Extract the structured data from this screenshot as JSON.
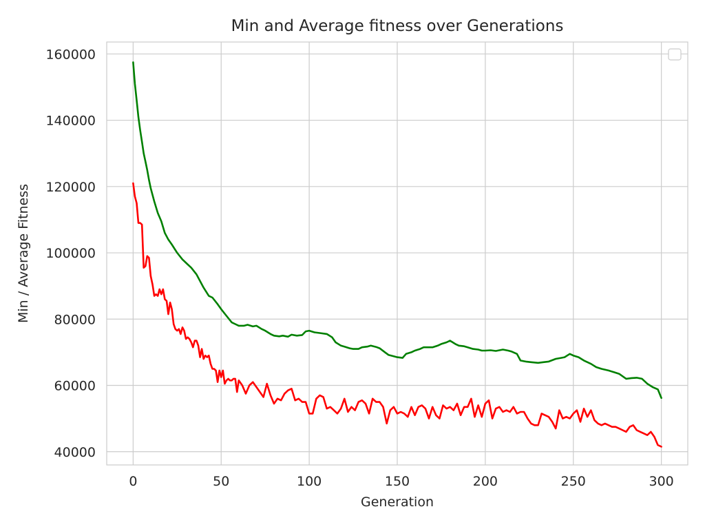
{
  "chart_data": {
    "type": "line",
    "title": "Min and Average fitness over Generations",
    "xlabel": "Generation",
    "ylabel": "Min / Average Fitness",
    "xlim": [
      -15,
      315
    ],
    "ylim": [
      36000,
      163600
    ],
    "xticks": [
      0,
      50,
      100,
      150,
      200,
      250,
      300
    ],
    "yticks": [
      40000,
      60000,
      80000,
      100000,
      120000,
      140000,
      160000
    ],
    "grid": true,
    "legend": "top-right, empty",
    "series": [
      {
        "color": "#008000",
        "x": [
          0,
          1,
          2,
          3,
          4,
          5,
          6,
          7,
          8,
          9,
          10,
          12,
          14,
          16,
          18,
          20,
          22,
          25,
          28,
          30,
          33,
          36,
          40,
          43,
          45,
          48,
          50,
          53,
          56,
          58,
          60,
          63,
          65,
          68,
          70,
          73,
          75,
          78,
          80,
          83,
          85,
          88,
          90,
          93,
          96,
          98,
          100,
          103,
          106,
          110,
          113,
          115,
          118,
          120,
          123,
          125,
          128,
          130,
          133,
          135,
          138,
          140,
          143,
          145,
          148,
          150,
          153,
          155,
          158,
          160,
          163,
          165,
          168,
          170,
          173,
          175,
          178,
          180,
          183,
          185,
          188,
          190,
          193,
          196,
          198,
          200,
          203,
          206,
          210,
          213,
          215,
          218,
          220,
          223,
          226,
          230,
          233,
          236,
          240,
          243,
          245,
          248,
          250,
          253,
          256,
          260,
          263,
          266,
          270,
          273,
          276,
          280,
          283,
          286,
          289,
          292,
          295,
          298,
          300
        ],
        "y": [
          157500,
          151000,
          146000,
          141000,
          137000,
          133500,
          130000,
          127500,
          125000,
          122000,
          119500,
          115500,
          112000,
          109500,
          106000,
          104000,
          102500,
          100000,
          98000,
          97000,
          95500,
          93500,
          89500,
          87000,
          86500,
          84500,
          83000,
          81000,
          79000,
          78500,
          78000,
          78000,
          78300,
          77800,
          78000,
          77000,
          76500,
          75500,
          75000,
          74800,
          75000,
          74700,
          75300,
          75000,
          75200,
          76300,
          76500,
          76000,
          75800,
          75500,
          74500,
          73000,
          72000,
          71700,
          71200,
          71000,
          71000,
          71500,
          71700,
          72000,
          71600,
          71200,
          70000,
          69200,
          68800,
          68500,
          68300,
          69500,
          70000,
          70500,
          71000,
          71500,
          71500,
          71500,
          72000,
          72500,
          73000,
          73500,
          72500,
          72000,
          71800,
          71500,
          71000,
          70800,
          70500,
          70500,
          70600,
          70400,
          70800,
          70500,
          70200,
          69500,
          67500,
          67200,
          67000,
          66800,
          67000,
          67200,
          68000,
          68300,
          68500,
          69500,
          69000,
          68500,
          67500,
          66500,
          65500,
          65000,
          64500,
          64000,
          63500,
          62000,
          62200,
          62300,
          62000,
          60500,
          59500,
          58800,
          56200
        ]
      },
      {
        "color": "#ff0000",
        "x": [
          0,
          1,
          2,
          3,
          4,
          5,
          6,
          7,
          8,
          9,
          10,
          11,
          12,
          13,
          14,
          15,
          16,
          17,
          18,
          19,
          20,
          21,
          22,
          23,
          24,
          25,
          26,
          27,
          28,
          29,
          30,
          31,
          32,
          33,
          34,
          35,
          36,
          37,
          38,
          39,
          40,
          41,
          42,
          43,
          44,
          45,
          46,
          47,
          48,
          49,
          50,
          51,
          52,
          53,
          54,
          55,
          56,
          57,
          58,
          59,
          60,
          62,
          64,
          66,
          68,
          70,
          72,
          74,
          76,
          78,
          80,
          82,
          84,
          86,
          88,
          90,
          92,
          94,
          96,
          98,
          100,
          102,
          104,
          106,
          108,
          110,
          112,
          114,
          116,
          118,
          120,
          122,
          124,
          126,
          128,
          130,
          132,
          134,
          136,
          138,
          140,
          142,
          144,
          146,
          148,
          150,
          152,
          154,
          156,
          158,
          160,
          162,
          164,
          166,
          168,
          170,
          172,
          174,
          176,
          178,
          180,
          182,
          184,
          186,
          188,
          190,
          192,
          194,
          196,
          198,
          200,
          202,
          204,
          206,
          208,
          210,
          212,
          214,
          216,
          218,
          220,
          222,
          224,
          226,
          228,
          230,
          232,
          234,
          236,
          238,
          240,
          242,
          244,
          246,
          248,
          250,
          252,
          254,
          256,
          258,
          260,
          262,
          264,
          266,
          268,
          270,
          272,
          274,
          276,
          278,
          280,
          282,
          284,
          286,
          288,
          290,
          292,
          294,
          296,
          298,
          300
        ],
        "y": [
          121000,
          117000,
          115000,
          109000,
          109000,
          108500,
          95500,
          96000,
          99000,
          98500,
          93000,
          90500,
          87000,
          87500,
          87000,
          89000,
          87500,
          89000,
          86000,
          85500,
          81500,
          85000,
          83000,
          78500,
          77000,
          76500,
          77000,
          75500,
          77500,
          76500,
          74000,
          74500,
          74000,
          73000,
          71500,
          73500,
          73500,
          72000,
          68500,
          71000,
          68000,
          69000,
          68500,
          69000,
          66500,
          65000,
          65000,
          64500,
          61000,
          64500,
          62500,
          64500,
          60500,
          61500,
          62000,
          61500,
          61500,
          62000,
          62000,
          58000,
          61500,
          60000,
          57500,
          60000,
          61000,
          59500,
          58000,
          56500,
          60500,
          57000,
          54500,
          56000,
          55500,
          57500,
          58500,
          59000,
          55500,
          56000,
          55000,
          55000,
          51500,
          51500,
          56000,
          57000,
          56500,
          53000,
          53500,
          52500,
          51500,
          53000,
          56000,
          52000,
          53500,
          52500,
          55000,
          55500,
          54500,
          51500,
          56000,
          55000,
          55000,
          53500,
          48500,
          52500,
          53500,
          51500,
          52000,
          51500,
          50500,
          53500,
          51000,
          53500,
          54000,
          53000,
          50000,
          53500,
          51000,
          50000,
          54000,
          53000,
          53500,
          52500,
          54500,
          51000,
          53500,
          53500,
          56000,
          50500,
          54000,
          50500,
          54500,
          55500,
          50000,
          53000,
          53500,
          52000,
          52500,
          52000,
          53500,
          51500,
          52000,
          52000,
          50000,
          48500,
          48000,
          48000,
          51500,
          51000,
          50500,
          49000,
          47000,
          52500,
          50000,
          50500,
          50000,
          51500,
          52500,
          49000,
          53000,
          50500,
          52500,
          49500,
          48500,
          48000,
          48500,
          48000,
          47500,
          47500,
          47000,
          46500,
          46000,
          47500,
          48000,
          46500,
          46000,
          45500,
          45000,
          46000,
          44500,
          42000,
          41500
        ]
      }
    ]
  }
}
